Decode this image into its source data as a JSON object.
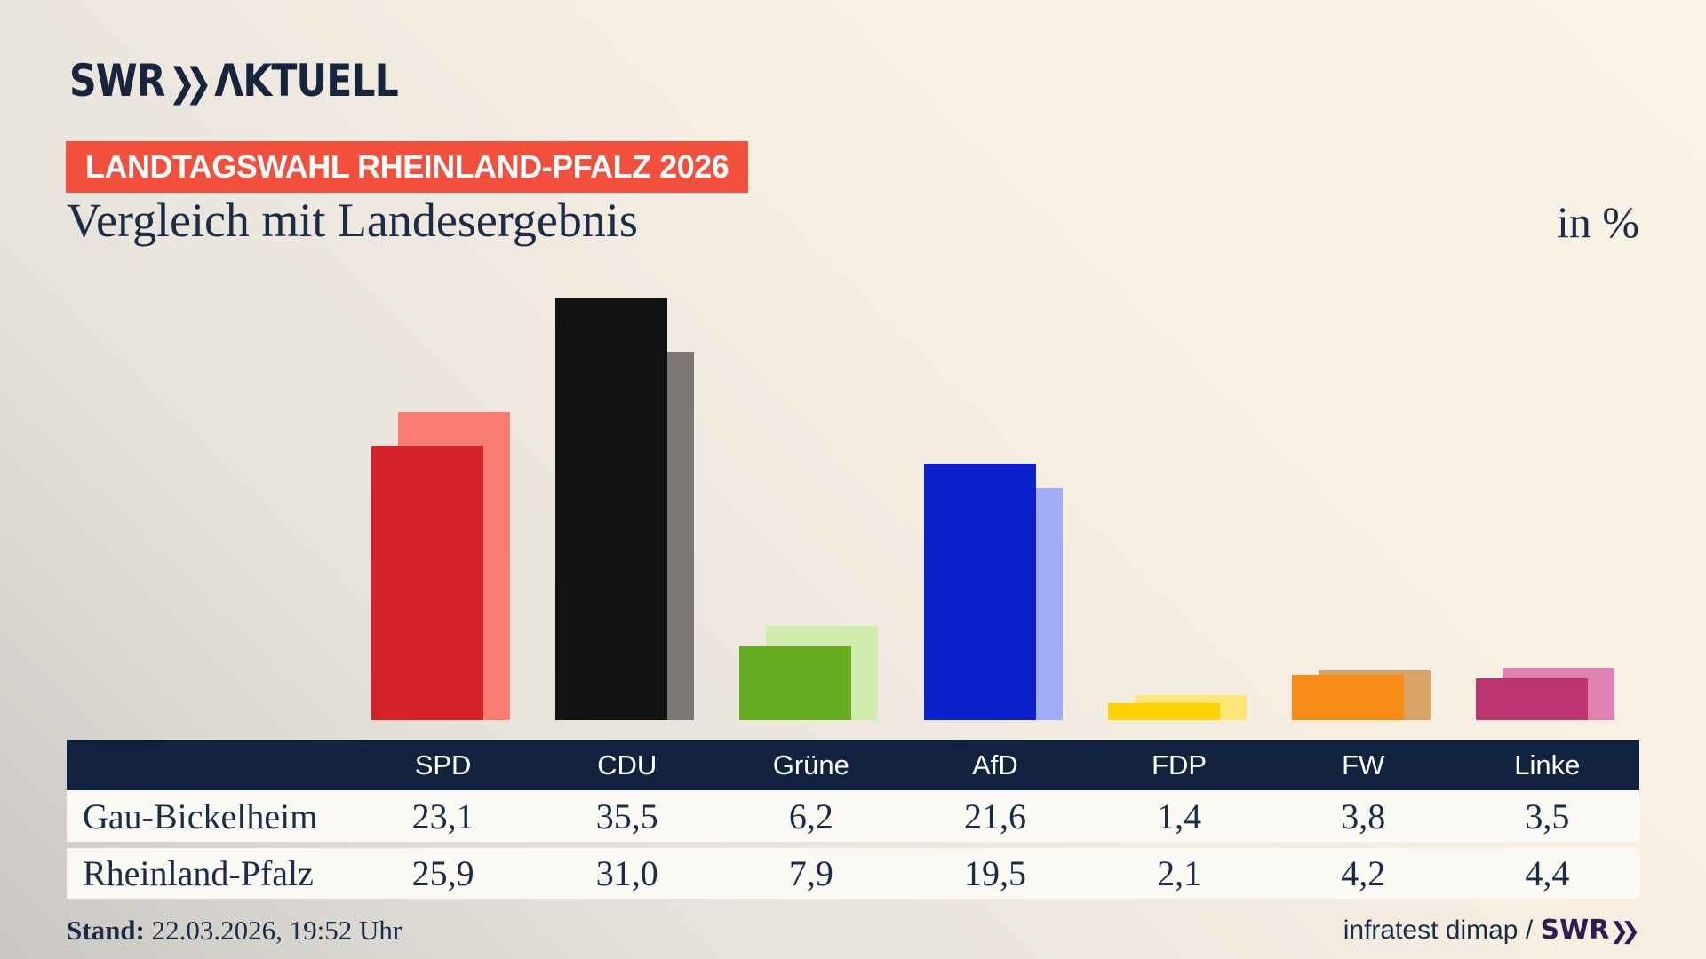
{
  "logo": {
    "brand": "SWR",
    "chevron": "❯❯",
    "suffix": "ΛKTUELL"
  },
  "header": {
    "badge": "LANDTAGSWAHL RHEINLAND-PFALZ 2026",
    "title": "Vergleich mit Landesergebnis",
    "unit_label": "in %"
  },
  "chart_data": {
    "type": "bar",
    "title": "Vergleich mit Landesergebnis",
    "unit": "in %",
    "categories": [
      "SPD",
      "CDU",
      "Grüne",
      "AfD",
      "FDP",
      "FW",
      "Linke"
    ],
    "series": [
      {
        "name": "Gau-Bickelheim",
        "role": "foreground",
        "values": [
          23.1,
          35.5,
          6.2,
          21.6,
          1.4,
          3.8,
          3.5
        ]
      },
      {
        "name": "Rheinland-Pfalz",
        "role": "background-comparison",
        "values": [
          25.9,
          31.0,
          7.9,
          19.5,
          2.1,
          4.2,
          4.4
        ]
      }
    ],
    "party_colors": [
      {
        "party": "SPD",
        "front": "#d52228",
        "back": "#f97d71"
      },
      {
        "party": "CDU",
        "front": "#131313",
        "back": "#7a7775"
      },
      {
        "party": "Grüne",
        "front": "#64ab1e",
        "back": "#cfeeae"
      },
      {
        "party": "AfD",
        "front": "#0c20cc",
        "back": "#9fadf8"
      },
      {
        "party": "FDP",
        "front": "#ffd301",
        "back": "#ffe478"
      },
      {
        "party": "FW",
        "front": "#f78c17",
        "back": "#d7a466"
      },
      {
        "party": "Linke",
        "front": "#bd3374",
        "back": "#e081b4"
      }
    ],
    "ylim": [
      0,
      36
    ],
    "axes_visible": false,
    "legend_position": "table-below"
  },
  "table": {
    "columns": [
      "SPD",
      "CDU",
      "Grüne",
      "AfD",
      "FDP",
      "FW",
      "Linke"
    ],
    "rows": [
      {
        "label": "Gau-Bickelheim",
        "values": [
          "23,1",
          "35,5",
          "6,2",
          "21,6",
          "1,4",
          "3,8",
          "3,5"
        ]
      },
      {
        "label": "Rheinland-Pfalz",
        "values": [
          "25,9",
          "31,0",
          "7,9",
          "19,5",
          "2,1",
          "4,2",
          "4,4"
        ]
      }
    ]
  },
  "footer": {
    "stand_label": "Stand:",
    "stand_value": " 22.03.2026, 19:52 Uhr",
    "source_prefix": "infratest dimap / ",
    "brand": "SWR",
    "brand_chevron": "❯❯"
  }
}
